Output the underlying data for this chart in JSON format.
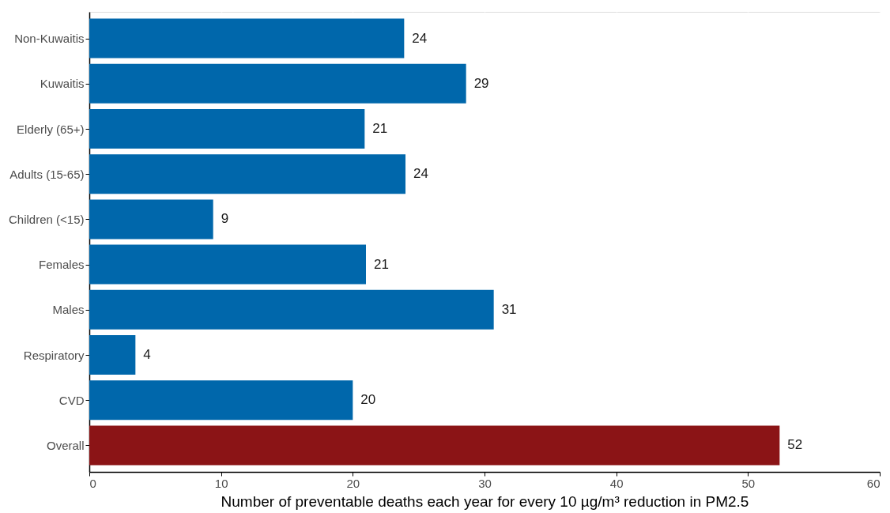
{
  "chart_data": {
    "type": "bar",
    "orientation": "horizontal",
    "xlabel": "Number of preventable deaths each year for every 10 µg/m³ reduction in PM2.5",
    "categories": [
      "Non-Kuwaitis",
      "Kuwaitis",
      "Elderly (65+)",
      "Adults (15-65)",
      "Children (<15)",
      "Females",
      "Males",
      "Respiratory",
      "CVD",
      "Overall"
    ],
    "values": [
      23.9,
      28.6,
      20.9,
      24.0,
      9.4,
      21.0,
      30.7,
      3.5,
      20.0,
      52.4
    ],
    "value_labels": [
      "24",
      "29",
      "21",
      "24",
      "9",
      "21",
      "31",
      "4",
      "20",
      "52"
    ],
    "colors": [
      "#0067ab",
      "#0067ab",
      "#0067ab",
      "#0067ab",
      "#0067ab",
      "#0067ab",
      "#0067ab",
      "#0067ab",
      "#0067ab",
      "#8b1416"
    ],
    "xlim": [
      0,
      60
    ],
    "xticks": [
      0,
      10,
      20,
      30,
      40,
      50,
      60
    ],
    "grid": true
  }
}
